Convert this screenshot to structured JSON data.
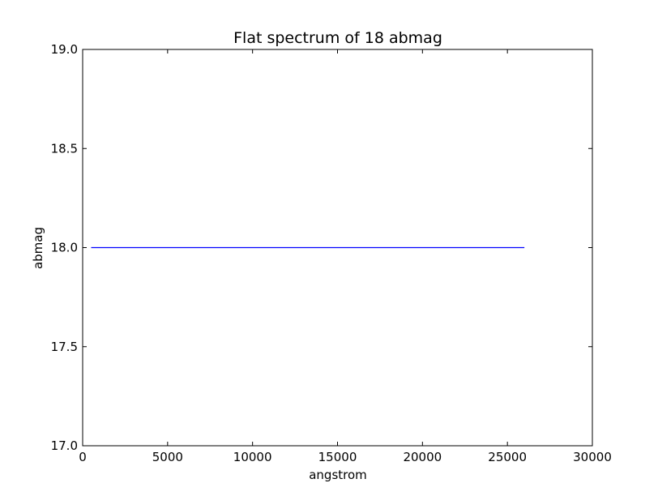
{
  "chart_data": {
    "type": "line",
    "title": "Flat spectrum of 18 abmag",
    "xlabel": "angstrom",
    "ylabel": "abmag",
    "xlim": [
      0,
      30000
    ],
    "ylim": [
      17.0,
      19.0
    ],
    "x_ticks": [
      0,
      5000,
      10000,
      15000,
      20000,
      25000,
      30000
    ],
    "x_tick_labels": [
      "0",
      "5000",
      "10000",
      "15000",
      "20000",
      "25000",
      "30000"
    ],
    "y_ticks": [
      17.0,
      17.5,
      18.0,
      18.5,
      19.0
    ],
    "y_tick_labels": [
      "17.0",
      "17.5",
      "18.0",
      "18.5",
      "19.0"
    ],
    "grid": false,
    "series": [
      {
        "color": "#0000ff",
        "x": [
          500,
          26000
        ],
        "y": [
          18.0,
          18.0
        ]
      }
    ]
  }
}
